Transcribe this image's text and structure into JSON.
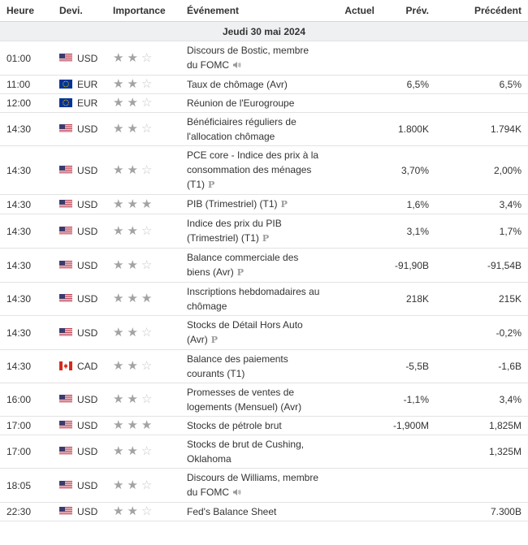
{
  "headers": {
    "time": "Heure",
    "currency": "Devi.",
    "importance": "Importance",
    "event": "Événement",
    "actual": "Actuel",
    "forecast": "Prév.",
    "previous": "Précédent"
  },
  "date_label": "Jeudi 30 mai 2024",
  "colors": {
    "us_red": "#b22234",
    "us_blue": "#3c3b6e",
    "eu_blue": "#003399",
    "eu_star": "#ffcc00",
    "ca_red": "#d52b1e"
  },
  "events": [
    {
      "time": "01:00",
      "flag": "us",
      "currency": "USD",
      "stars": 2,
      "event": "Discours de Bostic, membre du FOMC",
      "icon": "speaker-icon",
      "actual": "",
      "forecast": "",
      "previous": ""
    },
    {
      "time": "11:00",
      "flag": "eu",
      "currency": "EUR",
      "stars": 2,
      "event": "Taux de chômage (Avr)",
      "icon": "",
      "actual": "",
      "forecast": "6,5%",
      "previous": "6,5%"
    },
    {
      "time": "12:00",
      "flag": "eu",
      "currency": "EUR",
      "stars": 2,
      "event": "Réunion de l'Eurogroupe",
      "icon": "",
      "actual": "",
      "forecast": "",
      "previous": ""
    },
    {
      "time": "14:30",
      "flag": "us",
      "currency": "USD",
      "stars": 2,
      "event": "Bénéficiaires réguliers de l'allocation chômage",
      "icon": "",
      "actual": "",
      "forecast": "1.800K",
      "previous": "1.794K"
    },
    {
      "time": "14:30",
      "flag": "us",
      "currency": "USD",
      "stars": 2,
      "event": "PCE core - Indice des prix à la consommation des ménages (T1)",
      "icon": "preliminary-icon",
      "actual": "",
      "forecast": "3,70%",
      "previous": "2,00%"
    },
    {
      "time": "14:30",
      "flag": "us",
      "currency": "USD",
      "stars": 3,
      "event": "PIB (Trimestriel) (T1)",
      "icon": "preliminary-icon",
      "actual": "",
      "forecast": "1,6%",
      "previous": "3,4%"
    },
    {
      "time": "14:30",
      "flag": "us",
      "currency": "USD",
      "stars": 2,
      "event": "Indice des prix du PIB (Trimestriel) (T1)",
      "icon": "preliminary-icon",
      "actual": "",
      "forecast": "3,1%",
      "previous": "1,7%"
    },
    {
      "time": "14:30",
      "flag": "us",
      "currency": "USD",
      "stars": 2,
      "event": "Balance commerciale des biens (Avr)",
      "icon": "preliminary-icon",
      "actual": "",
      "forecast": "-91,90B",
      "previous": "-91,54B"
    },
    {
      "time": "14:30",
      "flag": "us",
      "currency": "USD",
      "stars": 3,
      "event": "Inscriptions hebdomadaires au chômage",
      "icon": "",
      "actual": "",
      "forecast": "218K",
      "previous": "215K"
    },
    {
      "time": "14:30",
      "flag": "us",
      "currency": "USD",
      "stars": 2,
      "event": "Stocks de Détail Hors Auto (Avr)",
      "icon": "preliminary-icon",
      "actual": "",
      "forecast": "",
      "previous": "-0,2%"
    },
    {
      "time": "14:30",
      "flag": "ca",
      "currency": "CAD",
      "stars": 2,
      "event": "Balance des paiements courants (T1)",
      "icon": "",
      "actual": "",
      "forecast": "-5,5B",
      "previous": "-1,6B"
    },
    {
      "time": "16:00",
      "flag": "us",
      "currency": "USD",
      "stars": 2,
      "event": "Promesses de ventes de logements (Mensuel) (Avr)",
      "icon": "",
      "actual": "",
      "forecast": "-1,1%",
      "previous": "3,4%"
    },
    {
      "time": "17:00",
      "flag": "us",
      "currency": "USD",
      "stars": 3,
      "event": "Stocks de pétrole brut",
      "icon": "",
      "actual": "",
      "forecast": "-1,900M",
      "previous": "1,825M"
    },
    {
      "time": "17:00",
      "flag": "us",
      "currency": "USD",
      "stars": 2,
      "event": "Stocks de brut de Cushing, Oklahoma",
      "icon": "",
      "actual": "",
      "forecast": "",
      "previous": "1,325M"
    },
    {
      "time": "18:05",
      "flag": "us",
      "currency": "USD",
      "stars": 2,
      "event": "Discours de Williams, membre du FOMC",
      "icon": "speaker-icon",
      "actual": "",
      "forecast": "",
      "previous": ""
    },
    {
      "time": "22:30",
      "flag": "us",
      "currency": "USD",
      "stars": 2,
      "event": "Fed's Balance Sheet",
      "icon": "",
      "actual": "",
      "forecast": "",
      "previous": "7.300B"
    }
  ]
}
